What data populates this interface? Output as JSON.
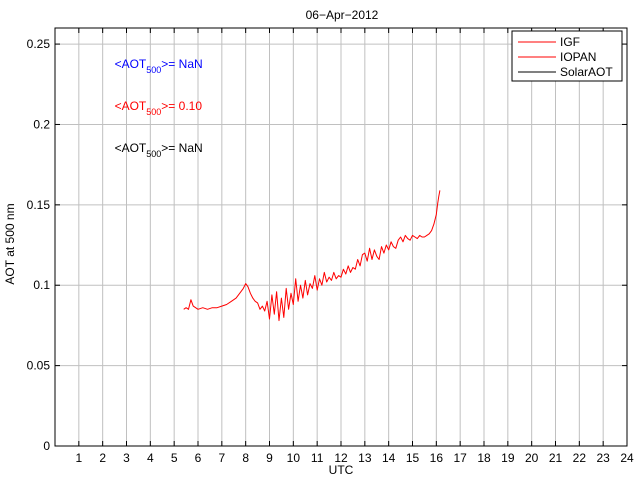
{
  "chart_data": {
    "type": "line",
    "title": "06−Apr−2012",
    "xlabel": "UTC",
    "ylabel": "AOT at 500 nm",
    "xlim": [
      0,
      24
    ],
    "ylim": [
      0,
      0.26
    ],
    "xticks": [
      1,
      2,
      3,
      4,
      5,
      6,
      7,
      8,
      9,
      10,
      11,
      12,
      13,
      14,
      15,
      16,
      17,
      18,
      19,
      20,
      21,
      22,
      23,
      24
    ],
    "yticks": [
      0,
      0.05,
      0.1,
      0.15,
      0.2,
      0.25
    ],
    "ytick_labels": [
      "0",
      "0.05",
      "0.1",
      "0.15",
      "0.2",
      "0.25"
    ],
    "grid": true,
    "legend_position": "top-right",
    "legend": [
      {
        "name": "IGF",
        "color": "#ff0000"
      },
      {
        "name": "IOPAN",
        "color": "#ff0000"
      },
      {
        "name": "SolarAOT",
        "color": "#000000"
      }
    ],
    "annotations": [
      {
        "prefix": "<AOT",
        "subscript": "500",
        "suffix": ">=  NaN",
        "color": "#0000ff",
        "x": 2.5,
        "y": 0.235
      },
      {
        "prefix": "<AOT",
        "subscript": "500",
        "suffix": ">= 0.10",
        "color": "#ff0000",
        "x": 2.5,
        "y": 0.209
      },
      {
        "prefix": "<AOT",
        "subscript": "500",
        "suffix": ">=  NaN",
        "color": "#000000",
        "x": 2.5,
        "y": 0.183
      }
    ],
    "series": [
      {
        "name": "IOPAN",
        "color": "#ff0000",
        "x": [
          5.4,
          5.5,
          5.6,
          5.7,
          5.8,
          5.9,
          6.0,
          6.2,
          6.4,
          6.6,
          6.8,
          7.0,
          7.2,
          7.4,
          7.6,
          7.8,
          7.9,
          8.0,
          8.1,
          8.2,
          8.3,
          8.4,
          8.5,
          8.6,
          8.7,
          8.8,
          8.9,
          9.0,
          9.1,
          9.2,
          9.3,
          9.4,
          9.5,
          9.6,
          9.7,
          9.8,
          9.9,
          10.0,
          10.1,
          10.2,
          10.3,
          10.4,
          10.5,
          10.6,
          10.7,
          10.8,
          10.9,
          11.0,
          11.1,
          11.2,
          11.3,
          11.4,
          11.5,
          11.6,
          11.7,
          11.8,
          11.9,
          12.0,
          12.1,
          12.2,
          12.3,
          12.4,
          12.5,
          12.6,
          12.7,
          12.8,
          12.9,
          13.0,
          13.1,
          13.2,
          13.3,
          13.4,
          13.5,
          13.6,
          13.7,
          13.8,
          13.9,
          14.0,
          14.1,
          14.2,
          14.3,
          14.4,
          14.5,
          14.6,
          14.7,
          14.8,
          14.9,
          15.0,
          15.1,
          15.2,
          15.3,
          15.4,
          15.5,
          15.6,
          15.7,
          15.8,
          15.9,
          16.0,
          16.05,
          16.1,
          16.15
        ],
        "values": [
          0.085,
          0.086,
          0.085,
          0.091,
          0.087,
          0.086,
          0.085,
          0.086,
          0.085,
          0.086,
          0.086,
          0.087,
          0.088,
          0.09,
          0.092,
          0.096,
          0.098,
          0.101,
          0.099,
          0.095,
          0.092,
          0.09,
          0.089,
          0.085,
          0.087,
          0.084,
          0.09,
          0.079,
          0.094,
          0.082,
          0.096,
          0.078,
          0.092,
          0.08,
          0.098,
          0.085,
          0.095,
          0.088,
          0.104,
          0.09,
          0.1,
          0.092,
          0.103,
          0.094,
          0.101,
          0.098,
          0.106,
          0.097,
          0.104,
          0.1,
          0.108,
          0.102,
          0.105,
          0.103,
          0.108,
          0.104,
          0.106,
          0.105,
          0.11,
          0.107,
          0.112,
          0.108,
          0.111,
          0.11,
          0.116,
          0.112,
          0.119,
          0.12,
          0.115,
          0.123,
          0.116,
          0.122,
          0.118,
          0.116,
          0.124,
          0.12,
          0.125,
          0.122,
          0.127,
          0.124,
          0.123,
          0.128,
          0.13,
          0.127,
          0.131,
          0.129,
          0.128,
          0.131,
          0.13,
          0.129,
          0.131,
          0.13,
          0.13,
          0.131,
          0.132,
          0.134,
          0.138,
          0.144,
          0.15,
          0.155,
          0.159
        ]
      }
    ]
  }
}
